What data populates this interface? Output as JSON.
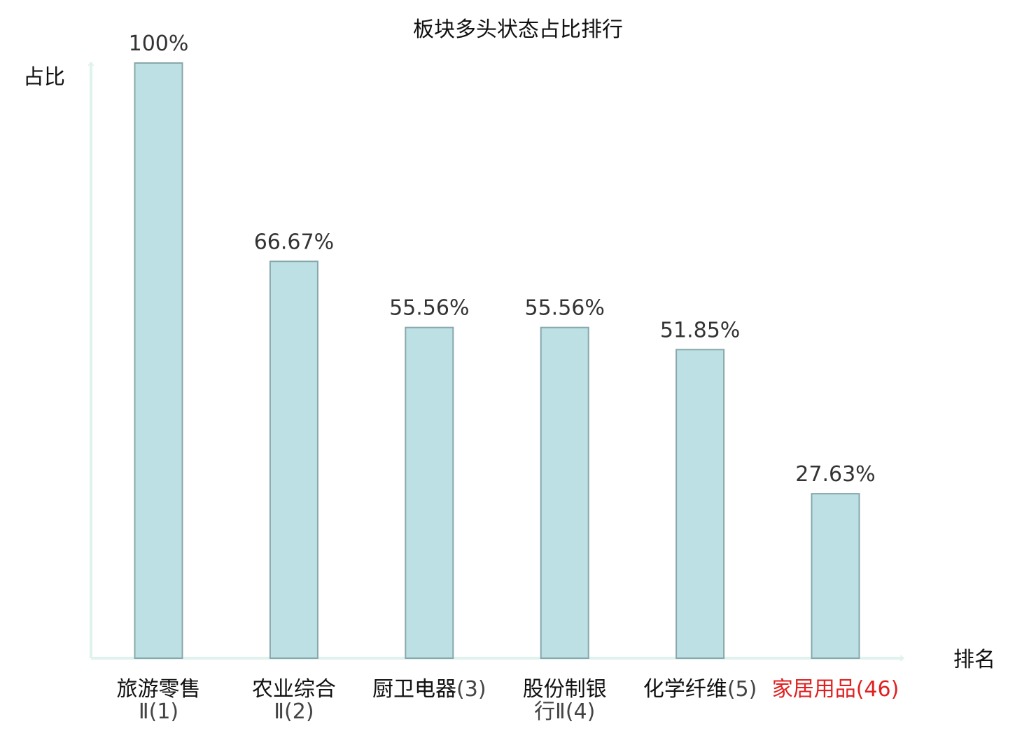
{
  "chart_data": {
    "type": "bar",
    "title": "板块多头状态占比排行",
    "ylabel": "占比",
    "xlabel": "排名",
    "ylim": [
      0,
      100
    ],
    "grid": false,
    "categories": [
      {
        "name": "旅游零售",
        "suffix": "Ⅱ(1)",
        "lines": [
          "旅游零售",
          "Ⅱ(1)"
        ],
        "highlight": false
      },
      {
        "name": "农业综合",
        "suffix": "Ⅱ(2)",
        "lines": [
          "农业综合",
          "Ⅱ(2)"
        ],
        "highlight": false
      },
      {
        "name": "厨卫电器",
        "suffix": "(3)",
        "lines": [
          "厨卫电器(3)"
        ],
        "highlight": false
      },
      {
        "name": "股份制银",
        "suffix": "行Ⅱ(4)",
        "lines": [
          "股份制银",
          "行Ⅱ(4)"
        ],
        "highlight": false
      },
      {
        "name": "化学纤维",
        "suffix": "(5)",
        "lines": [
          "化学纤维(5)"
        ],
        "highlight": false
      },
      {
        "name": "家居用品",
        "suffix": "(46)",
        "lines": [
          "家居用品(46)"
        ],
        "highlight": true
      }
    ],
    "values": [
      100,
      66.67,
      55.56,
      55.56,
      51.85,
      27.63
    ],
    "value_labels": [
      "100%",
      "66.67%",
      "55.56%",
      "55.56%",
      "51.85%",
      "27.63%"
    ],
    "colors": {
      "bar_fill": "#bce0e3",
      "bar_stroke": "#86a8ac",
      "axis": "#e0f2ee",
      "label_text": "#333333",
      "axis_text": "#111111",
      "highlight_text": "#e02020",
      "number_text": "#444444"
    }
  }
}
